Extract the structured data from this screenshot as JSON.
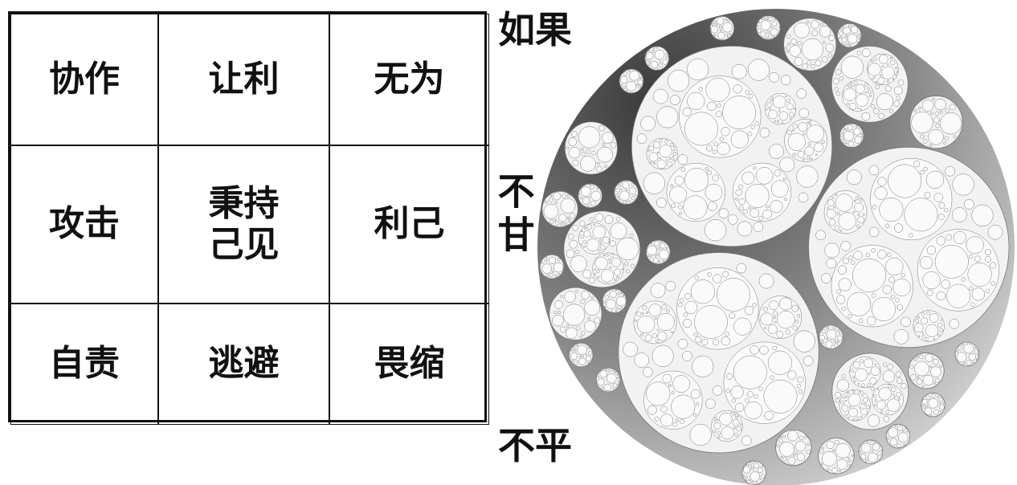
{
  "table": {
    "rows": [
      [
        "协作",
        "让利",
        "无为"
      ],
      [
        "攻击",
        [
          "秉持",
          "己见"
        ],
        "利己"
      ],
      [
        "自责",
        "逃避",
        "畏缩"
      ]
    ]
  },
  "side_labels": {
    "top": "如果",
    "middle": "不甘",
    "bottom": "不平"
  }
}
